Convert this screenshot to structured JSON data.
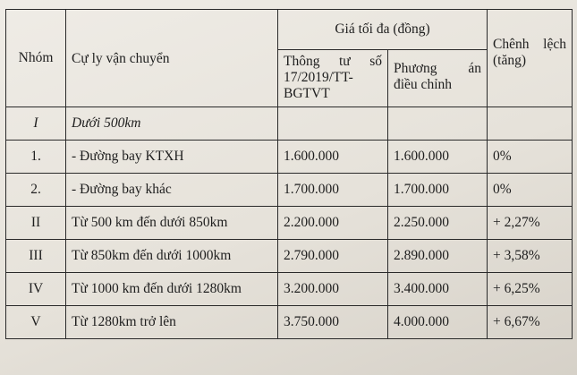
{
  "header": {
    "group": "Nhóm",
    "distance": "Cự ly vận chuyển",
    "max_price": "Giá tối đa  (đồng)",
    "circular_l1": "Thông tư số",
    "circular_l2": "17/2019/TT-",
    "circular_l3": "BGTVT",
    "plan_l1": "Phương án",
    "plan_l2": "điều chỉnh",
    "diff_l1": "Chênh lệch",
    "diff_l2": "(tăng)"
  },
  "section": {
    "group": "I",
    "distance": "Dưới 500km"
  },
  "rows": [
    {
      "group": "1.",
      "distance": "- Đường bay KTXH",
      "old": "1.600.000",
      "new": "1.600.000",
      "diff": "0%"
    },
    {
      "group": "2.",
      "distance": "- Đường bay khác",
      "old": "1.700.000",
      "new": "1.700.000",
      "diff": "0%"
    },
    {
      "group": "II",
      "distance": "Từ 500 km đến dưới 850km",
      "old": "2.200.000",
      "new": "2.250.000",
      "diff": "+ 2,27%"
    },
    {
      "group": "III",
      "distance": "Từ 850km đến dưới 1000km",
      "old": "2.790.000",
      "new": "2.890.000",
      "diff": "+ 3,58%"
    },
    {
      "group": "IV",
      "distance": "Từ 1000 km đến dưới 1280km",
      "old": "3.200.000",
      "new": "3.400.000",
      "diff": "+ 6,25%"
    },
    {
      "group": "V",
      "distance": "Từ 1280km trở lên",
      "old": "3.750.000",
      "new": "4.000.000",
      "diff": "+ 6,67%"
    }
  ]
}
